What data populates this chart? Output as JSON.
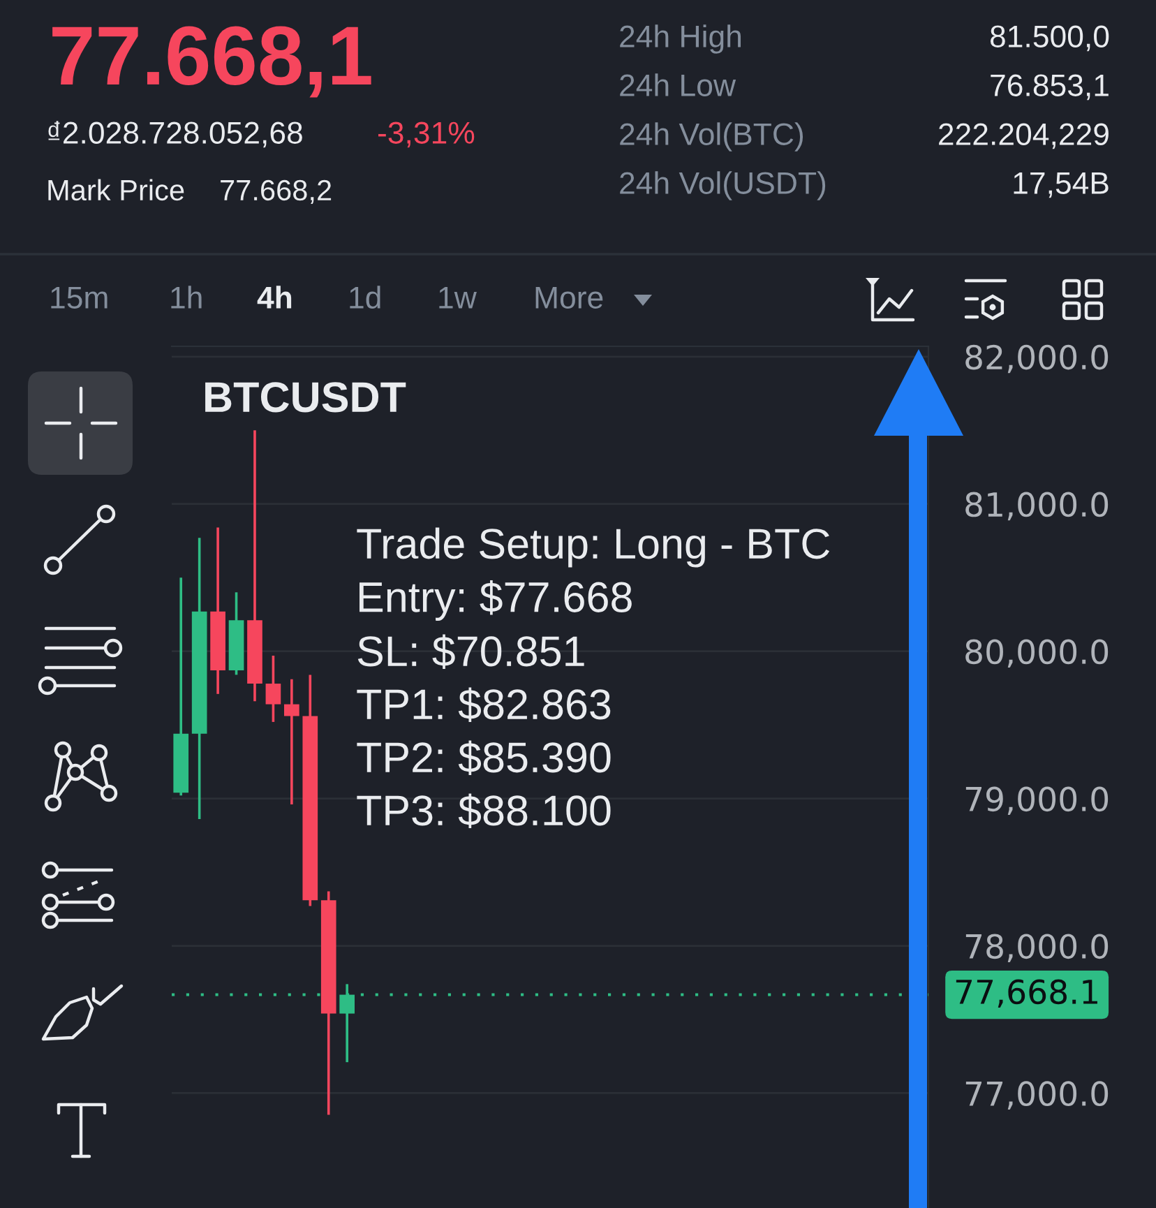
{
  "chart_data": {
    "type": "candlestick",
    "title": "BTCUSDT",
    "categories": [
      null,
      null,
      null,
      null,
      null,
      null,
      null,
      null,
      null,
      null,
      null,
      null,
      null,
      null,
      null,
      null,
      null,
      null,
      null,
      null,
      null,
      null,
      null,
      null,
      null,
      null,
      null,
      null,
      null,
      null,
      null,
      null,
      null,
      null,
      null,
      null,
      null,
      null,
      null,
      null,
      null
    ],
    "ohlc": [
      [
        79040,
        80500,
        79020,
        79440
      ],
      [
        79440,
        80770,
        78860,
        80270
      ],
      [
        80270,
        80840,
        79710,
        79870
      ],
      [
        79870,
        80400,
        79840,
        80210
      ],
      [
        80210,
        81500,
        79660,
        79780
      ],
      [
        79780,
        79970,
        79520,
        79640
      ],
      [
        79640,
        79810,
        78960,
        79560
      ],
      [
        79560,
        79840,
        78270,
        78310
      ],
      [
        78310,
        78370,
        76853,
        77540
      ],
      [
        77540,
        77740,
        77210,
        77668.1
      ],
      null,
      null,
      null,
      null,
      null,
      null,
      null,
      null,
      null,
      null,
      null,
      null,
      null,
      null,
      null,
      null,
      null,
      null,
      null,
      null,
      null,
      null,
      null,
      null,
      null,
      null,
      null,
      null,
      null,
      null,
      null
    ],
    "colors": [
      "#2ebd85",
      "#2ebd85",
      "#f6465d",
      "#2ebd85",
      "#f6465d",
      "#f6465d",
      "#f6465d",
      "#f6465d",
      "#f6465d",
      "#2ebd85",
      null,
      null,
      null,
      null,
      null,
      null,
      null,
      null,
      null,
      null,
      null,
      null,
      null,
      null,
      null,
      null,
      null,
      null,
      null,
      null,
      null,
      null,
      null,
      null,
      null,
      null,
      null,
      null,
      null,
      null,
      null
    ],
    "ylim": [
      76220,
      82070
    ],
    "yticks": [
      {
        "value": 77000,
        "label": "77,000.0"
      },
      {
        "value": 78000,
        "label": "78,000.0"
      },
      {
        "value": 79000,
        "label": "79,000.0"
      },
      {
        "value": 80000,
        "label": "80,000.0"
      },
      {
        "value": 81000,
        "label": "81,000.0"
      },
      {
        "value": 82000,
        "label": "82,000.0"
      }
    ],
    "grid": "y",
    "tick_labels": "y",
    "ref_lines": [
      {
        "axis": "y",
        "value": 77668.1,
        "label": "77,668.1",
        "color": "#2ebd85",
        "line_style": "dotted"
      }
    ],
    "annotations": [
      "77.668,1",
      "₫2.028.728.052,68",
      "-3,31%",
      "Mark Price",
      "77.668,2",
      "24h High",
      "81.500,0",
      "24h Low",
      "76.853,1",
      "24h Vol(BTC)",
      "222.204,229",
      "24h Vol(USDT)",
      "17,54B",
      "15m",
      "1h",
      "4h",
      "1d",
      "1w",
      "More",
      "Trade Setup: Long - BTC",
      "Entry: $77.668",
      "SL: $70.851",
      "TP1: $82.863",
      "TP2: $85.390",
      "TP3: $88.100"
    ]
  }
}
